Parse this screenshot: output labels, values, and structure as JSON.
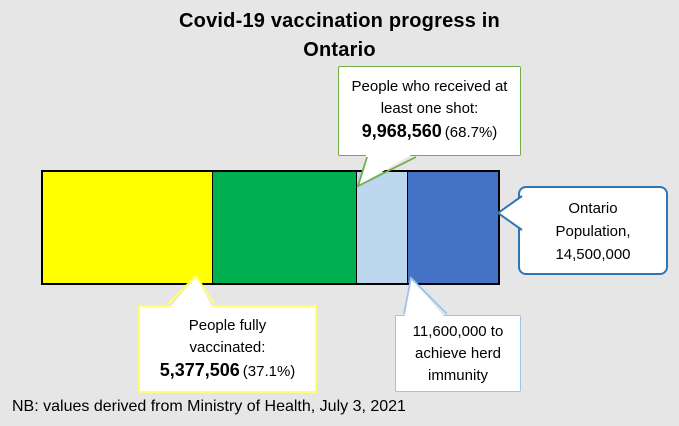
{
  "header": {
    "title_line1": "Covid-19 vaccination progress in",
    "title_line2": "Ontario"
  },
  "footer": {
    "note": "NB: values derived from Ministry of Health, July 3, 2021"
  },
  "colors": {
    "background": "#E7E6E6",
    "callout_fill": "#FFFFFF",
    "bar_outline": "#000000",
    "one_shot_border": "#70AD47",
    "population_border": "#2E75B6",
    "fully_vaccinated_border": "#FFFF70",
    "herd_immunity_border": "#9DC3E6"
  },
  "callouts": {
    "one_shot": {
      "line1": "People who received at",
      "line2": "least one shot:",
      "value": "9,968,560",
      "pct": "(68.7%)"
    },
    "population": {
      "line1": "Ontario",
      "line2": "Population,",
      "line3": "14,500,000"
    },
    "fully_vaccinated": {
      "line1": "People fully",
      "line2": "vaccinated:",
      "value": "5,377,506",
      "pct": "(37.1%)"
    },
    "herd_immunity": {
      "line1": "11,600,000 to",
      "line2": "achieve herd",
      "line3": "immunity"
    }
  },
  "chart_data": {
    "type": "bar",
    "subtype": "single-horizontal-stacked-bar",
    "title": "Covid-19 vaccination progress in Ontario",
    "note": "NB: values derived from Ministry of Health, July 3, 2021",
    "legend": "none",
    "axes": "none",
    "total": {
      "label": "Ontario Population",
      "value": 14500000
    },
    "milestones": [
      {
        "label": "People fully vaccinated",
        "value": 5377506,
        "pct_of_population": 37.1
      },
      {
        "label": "People who received at least one shot",
        "value": 9968560,
        "pct_of_population": 68.7
      },
      {
        "label": "To achieve herd immunity",
        "value": 11600000,
        "pct_of_population": 80.0
      }
    ],
    "segments": [
      {
        "name": "fully-vaccinated",
        "color": "#FFFF00",
        "width_pct": 37.1
      },
      {
        "name": "one-shot-not-fully",
        "color": "#00B050",
        "width_pct": 31.6
      },
      {
        "name": "gap-to-herd-immunity",
        "color": "#BDD7EE",
        "width_pct": 11.3
      },
      {
        "name": "rest-of-population",
        "color": "#4472C4",
        "width_pct": 20.0
      }
    ]
  }
}
